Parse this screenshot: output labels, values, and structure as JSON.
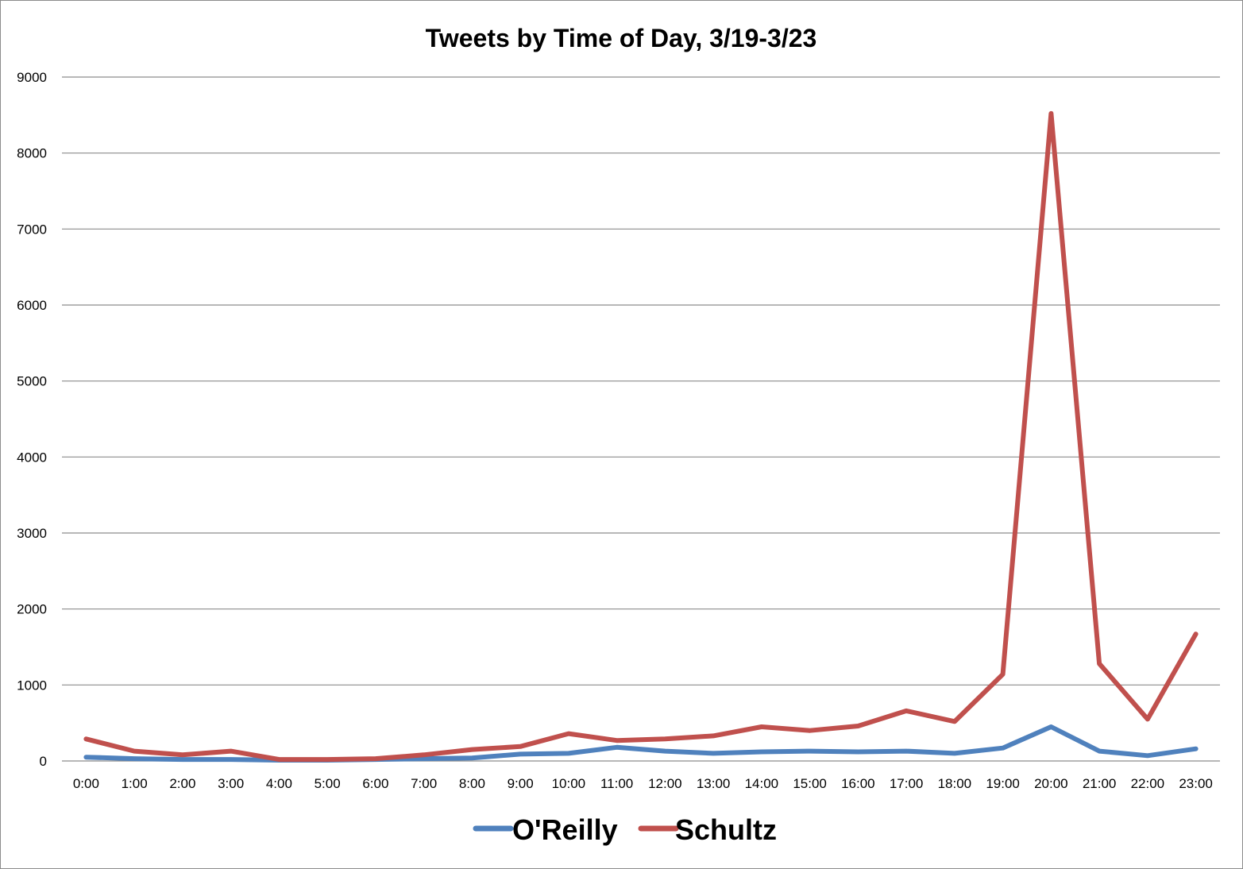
{
  "chart_data": {
    "type": "line",
    "title": "Tweets by Time of Day, 3/19-3/23",
    "xlabel": "",
    "ylabel": "",
    "categories": [
      "0:00",
      "1:00",
      "2:00",
      "3:00",
      "4:00",
      "5:00",
      "6:00",
      "7:00",
      "8:00",
      "9:00",
      "10:00",
      "11:00",
      "12:00",
      "13:00",
      "14:00",
      "15:00",
      "16:00",
      "17:00",
      "18:00",
      "19:00",
      "20:00",
      "21:00",
      "22:00",
      "23:00"
    ],
    "ylim": [
      0,
      9000
    ],
    "yticks": [
      0,
      1000,
      2000,
      3000,
      4000,
      5000,
      6000,
      7000,
      8000,
      9000
    ],
    "grid": true,
    "legend_position": "bottom",
    "series": [
      {
        "name": "O'Reilly",
        "color": "#4f81bd",
        "values": [
          50,
          30,
          20,
          20,
          10,
          10,
          20,
          30,
          40,
          90,
          100,
          180,
          130,
          100,
          120,
          130,
          120,
          130,
          100,
          170,
          450,
          130,
          70,
          160
        ]
      },
      {
        "name": "Schultz",
        "color": "#c0504d",
        "values": [
          290,
          130,
          80,
          130,
          20,
          20,
          30,
          80,
          150,
          190,
          360,
          270,
          290,
          330,
          450,
          400,
          460,
          660,
          520,
          1140,
          8520,
          1280,
          550,
          1670
        ]
      }
    ]
  }
}
